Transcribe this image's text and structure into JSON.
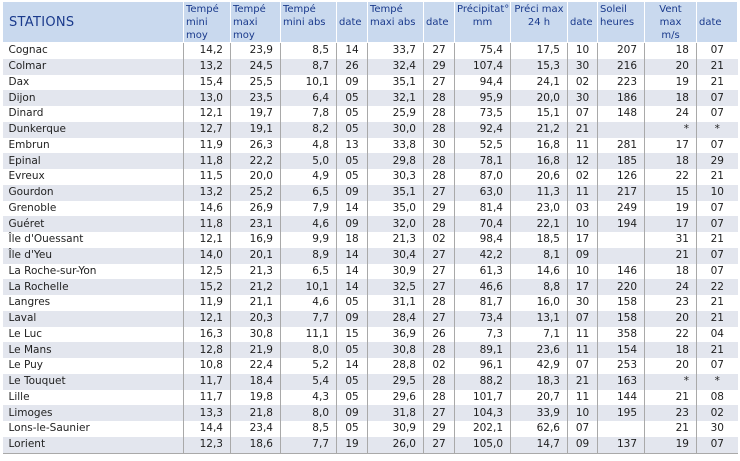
{
  "headers": {
    "stations": "STATIONS",
    "t_mini_moy": [
      "Tempé",
      "mini moy"
    ],
    "t_maxi_moy": [
      "Tempé",
      "maxi moy"
    ],
    "t_mini_abs": [
      "Tempé",
      "mini abs"
    ],
    "date1": "date",
    "t_maxi_abs": [
      "Tempé",
      "maxi abs"
    ],
    "date2": "date",
    "precip": [
      "Précipitat°",
      "mm"
    ],
    "preci_max": [
      "Préci max",
      "24 h"
    ],
    "date3": "date",
    "soleil": [
      "Soleil",
      "heures"
    ],
    "vent": [
      "Vent max",
      "m/s"
    ],
    "date4": "date"
  },
  "rows": [
    [
      "Cognac",
      "14,2",
      "23,9",
      "8,5",
      "14",
      "33,7",
      "27",
      "75,4",
      "17,5",
      "10",
      "207",
      "18",
      "07"
    ],
    [
      "Colmar",
      "13,2",
      "24,5",
      "8,7",
      "26",
      "32,4",
      "29",
      "107,4",
      "15,3",
      "30",
      "216",
      "20",
      "21"
    ],
    [
      "Dax",
      "15,4",
      "25,5",
      "10,1",
      "09",
      "35,1",
      "27",
      "94,4",
      "24,1",
      "02",
      "223",
      "19",
      "21"
    ],
    [
      "Dijon",
      "13,0",
      "23,5",
      "6,4",
      "05",
      "32,1",
      "28",
      "95,9",
      "20,0",
      "30",
      "186",
      "18",
      "07"
    ],
    [
      "Dinard",
      "12,1",
      "19,7",
      "7,8",
      "05",
      "25,9",
      "28",
      "73,5",
      "15,1",
      "07",
      "148",
      "24",
      "07"
    ],
    [
      "Dunkerque",
      "12,7",
      "19,1",
      "8,2",
      "05",
      "30,0",
      "28",
      "92,4",
      "21,2",
      "21",
      "",
      "*",
      "*"
    ],
    [
      "Embrun",
      "11,9",
      "26,3",
      "4,8",
      "13",
      "33,8",
      "30",
      "52,5",
      "16,8",
      "11",
      "281",
      "17",
      "07"
    ],
    [
      "Epinal",
      "11,8",
      "22,2",
      "5,0",
      "05",
      "29,8",
      "28",
      "78,1",
      "16,8",
      "12",
      "185",
      "18",
      "29"
    ],
    [
      "Evreux",
      "11,5",
      "20,0",
      "4,9",
      "05",
      "30,3",
      "28",
      "87,0",
      "20,6",
      "02",
      "126",
      "22",
      "21"
    ],
    [
      "Gourdon",
      "13,2",
      "25,2",
      "6,5",
      "09",
      "35,1",
      "27",
      "63,0",
      "11,3",
      "11",
      "217",
      "15",
      "10"
    ],
    [
      "Grenoble",
      "14,6",
      "26,9",
      "7,9",
      "14",
      "35,0",
      "29",
      "81,4",
      "23,0",
      "03",
      "249",
      "19",
      "07"
    ],
    [
      "Guéret",
      "11,8",
      "23,1",
      "4,6",
      "09",
      "32,0",
      "28",
      "70,4",
      "22,1",
      "10",
      "194",
      "17",
      "07"
    ],
    [
      "Île d'Ouessant",
      "12,1",
      "16,9",
      "9,9",
      "18",
      "21,3",
      "02",
      "98,4",
      "18,5",
      "17",
      "",
      "31",
      "21"
    ],
    [
      "Île d'Yeu",
      "14,0",
      "20,1",
      "8,9",
      "14",
      "30,4",
      "27",
      "42,2",
      "8,1",
      "09",
      "",
      "21",
      "07"
    ],
    [
      "La Roche-sur-Yon",
      "12,5",
      "21,3",
      "6,5",
      "14",
      "30,9",
      "27",
      "61,3",
      "14,6",
      "10",
      "146",
      "18",
      "07"
    ],
    [
      "La Rochelle",
      "15,2",
      "21,2",
      "10,1",
      "14",
      "32,5",
      "27",
      "46,6",
      "8,8",
      "17",
      "220",
      "24",
      "22"
    ],
    [
      "Langres",
      "11,9",
      "21,1",
      "4,6",
      "05",
      "31,1",
      "28",
      "81,7",
      "16,0",
      "30",
      "158",
      "23",
      "21"
    ],
    [
      "Laval",
      "12,1",
      "20,3",
      "7,7",
      "09",
      "28,4",
      "27",
      "73,4",
      "13,1",
      "07",
      "158",
      "20",
      "21"
    ],
    [
      "Le Luc",
      "16,3",
      "30,8",
      "11,1",
      "15",
      "36,9",
      "26",
      "7,3",
      "7,1",
      "11",
      "358",
      "22",
      "04"
    ],
    [
      "Le Mans",
      "12,8",
      "21,9",
      "8,0",
      "05",
      "30,8",
      "28",
      "89,1",
      "23,6",
      "11",
      "154",
      "18",
      "21"
    ],
    [
      "Le Puy",
      "10,8",
      "22,4",
      "5,2",
      "14",
      "28,8",
      "02",
      "96,1",
      "42,9",
      "07",
      "253",
      "20",
      "07"
    ],
    [
      "Le Touquet",
      "11,7",
      "18,4",
      "5,4",
      "05",
      "29,5",
      "28",
      "88,2",
      "18,3",
      "21",
      "163",
      "*",
      "*"
    ],
    [
      "Lille",
      "11,7",
      "19,8",
      "4,3",
      "05",
      "29,6",
      "28",
      "101,7",
      "20,7",
      "11",
      "144",
      "21",
      "08"
    ],
    [
      "Limoges",
      "13,3",
      "21,8",
      "8,0",
      "09",
      "31,8",
      "27",
      "104,3",
      "33,9",
      "10",
      "195",
      "23",
      "02"
    ],
    [
      "Lons-le-Saunier",
      "14,4",
      "23,4",
      "8,5",
      "05",
      "30,9",
      "29",
      "202,1",
      "62,6",
      "07",
      "",
      "21",
      "30"
    ],
    [
      "Lorient",
      "12,3",
      "18,6",
      "7,7",
      "19",
      "26,0",
      "27",
      "105,0",
      "14,7",
      "09",
      "137",
      "19",
      "07"
    ]
  ],
  "colors": {
    "header_bg": "#c9d9ee",
    "header_text": "#1a3a8c",
    "stripe": "#e3e6ee"
  }
}
